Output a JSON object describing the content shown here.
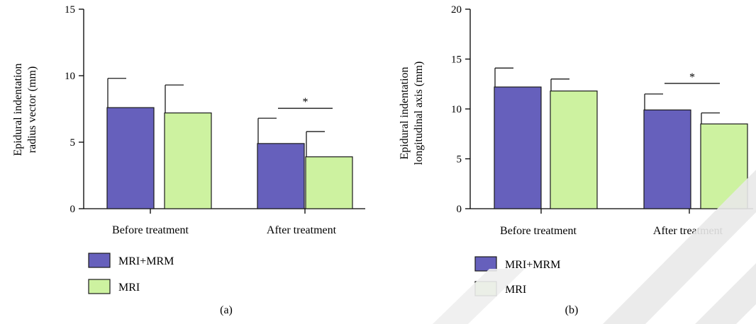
{
  "colors": {
    "MRI+MRM": "#6660bc",
    "MRI": "#cdf2a0",
    "bar_edge": "#1a1a1a"
  },
  "chart_data": [
    {
      "type": "bar",
      "panel_label": "(a)",
      "ylabel_lines": [
        "Epidural indentation",
        "radius vector (mm)"
      ],
      "ylim": [
        0,
        15
      ],
      "yticks": [
        0,
        5,
        10,
        15
      ],
      "categories": [
        "Before treatment",
        "After treatment"
      ],
      "series": [
        {
          "name": "MRI+MRM",
          "values": [
            7.6,
            4.9
          ],
          "errors": [
            2.2,
            1.9
          ]
        },
        {
          "name": "MRI",
          "values": [
            7.2,
            3.9
          ],
          "errors": [
            2.1,
            1.9
          ]
        }
      ],
      "significance": [
        {
          "category_index": 1,
          "label": "*"
        }
      ],
      "grid": false,
      "legend_position": "bottom-left"
    },
    {
      "type": "bar",
      "panel_label": "(b)",
      "ylabel_lines": [
        "Epidural indentation",
        "longitudinal axis (mm)"
      ],
      "ylim": [
        0,
        20
      ],
      "yticks": [
        0,
        5,
        10,
        15,
        20
      ],
      "categories": [
        "Before treatment",
        "After treatment"
      ],
      "series": [
        {
          "name": "MRI+MRM",
          "values": [
            12.2,
            9.9
          ],
          "errors": [
            1.9,
            1.6
          ]
        },
        {
          "name": "MRI",
          "values": [
            11.8,
            8.5
          ],
          "errors": [
            1.2,
            1.1
          ]
        }
      ],
      "significance": [
        {
          "category_index": 1,
          "label": "*"
        }
      ],
      "grid": false,
      "legend_position": "bottom-left"
    }
  ]
}
